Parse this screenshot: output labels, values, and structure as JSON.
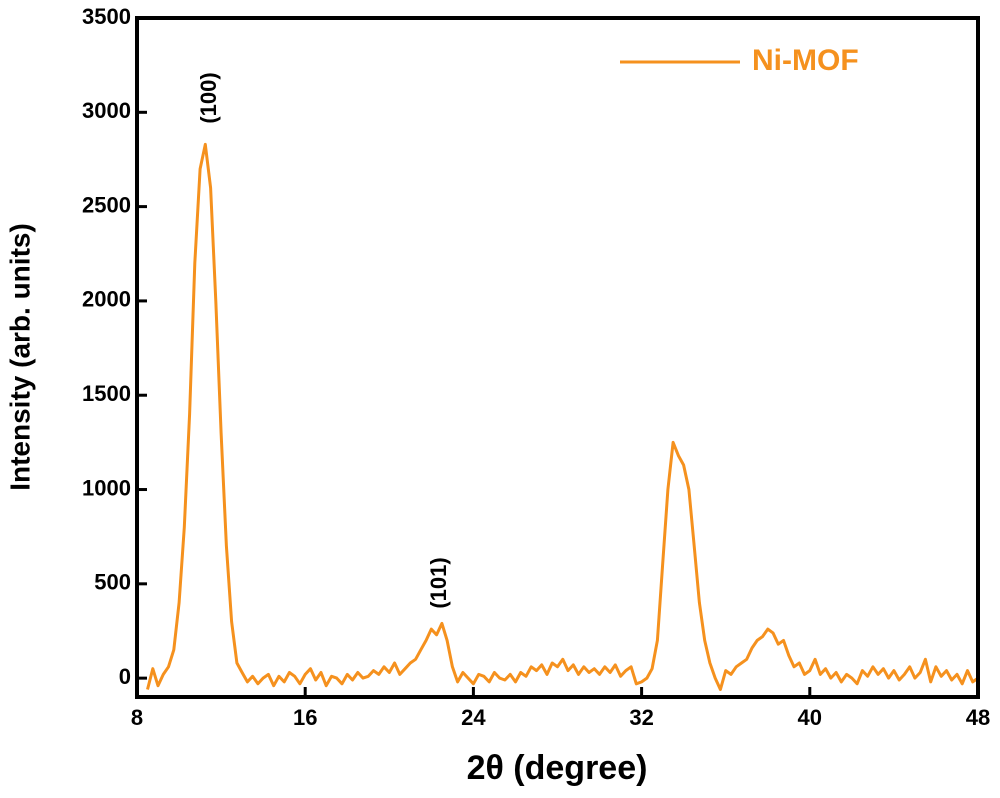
{
  "chart_data": {
    "type": "line",
    "xlabel": "2θ (degree)",
    "ylabel": "Intensity (arb. units)",
    "xlim": [
      8,
      48
    ],
    "ylim": [
      -100,
      3500
    ],
    "xticks": [
      8,
      16,
      24,
      32,
      40,
      48
    ],
    "yticks": [
      0,
      500,
      1000,
      1500,
      2000,
      2500,
      3000,
      3500
    ],
    "legend": "upper right",
    "annotations": [
      "(100)",
      "(101)"
    ],
    "x": [
      8.5,
      8.75,
      9,
      9.25,
      9.5,
      9.75,
      10,
      10.25,
      10.5,
      10.75,
      11,
      11.25,
      11.5,
      11.75,
      12,
      12.25,
      12.5,
      12.75,
      13,
      13.25,
      13.5,
      13.75,
      14,
      14.25,
      14.5,
      14.75,
      15,
      15.25,
      15.5,
      15.75,
      16,
      16.25,
      16.5,
      16.75,
      17,
      17.25,
      17.5,
      17.75,
      18,
      18.25,
      18.5,
      18.75,
      19,
      19.25,
      19.5,
      19.75,
      20,
      20.25,
      20.5,
      20.75,
      21,
      21.25,
      21.5,
      21.75,
      22,
      22.25,
      22.5,
      22.75,
      23,
      23.25,
      23.5,
      23.75,
      24,
      24.25,
      24.5,
      24.75,
      25,
      25.25,
      25.5,
      25.75,
      26,
      26.25,
      26.5,
      26.75,
      27,
      27.25,
      27.5,
      27.75,
      28,
      28.25,
      28.5,
      28.75,
      29,
      29.25,
      29.5,
      29.75,
      30,
      30.25,
      30.5,
      30.75,
      31,
      31.25,
      31.5,
      31.75,
      32,
      32.25,
      32.5,
      32.75,
      33,
      33.25,
      33.5,
      33.75,
      34,
      34.25,
      34.5,
      34.75,
      35,
      35.25,
      35.5,
      35.75,
      36,
      36.25,
      36.5,
      36.75,
      37,
      37.25,
      37.5,
      37.75,
      38,
      38.25,
      38.5,
      38.75,
      39,
      39.25,
      39.5,
      39.75,
      40,
      40.25,
      40.5,
      40.75,
      41,
      41.25,
      41.5,
      41.75,
      42,
      42.25,
      42.5,
      42.75,
      43,
      43.25,
      43.5,
      43.75,
      44,
      44.25,
      44.5,
      44.75,
      45,
      45.25,
      45.5,
      45.75,
      46,
      46.25,
      46.5,
      46.75,
      47,
      47.25,
      47.5,
      47.75,
      48
    ],
    "series": [
      {
        "name": "Ni-MOF",
        "color": "#f5911e",
        "values": [
          -60,
          50,
          -40,
          20,
          60,
          150,
          400,
          800,
          1400,
          2200,
          2700,
          2830,
          2600,
          2000,
          1300,
          700,
          300,
          80,
          30,
          -20,
          10,
          -30,
          0,
          20,
          -40,
          10,
          -20,
          30,
          10,
          -30,
          20,
          50,
          -10,
          30,
          -40,
          10,
          0,
          -30,
          20,
          -10,
          30,
          0,
          10,
          40,
          20,
          60,
          30,
          80,
          20,
          50,
          80,
          100,
          150,
          200,
          260,
          230,
          290,
          200,
          60,
          -20,
          30,
          0,
          -30,
          20,
          10,
          -20,
          30,
          0,
          -10,
          20,
          -20,
          30,
          10,
          60,
          40,
          70,
          20,
          80,
          60,
          100,
          40,
          70,
          20,
          60,
          30,
          50,
          20,
          60,
          30,
          70,
          10,
          40,
          60,
          -30,
          -20,
          0,
          50,
          200,
          600,
          1000,
          1250,
          1180,
          1130,
          1000,
          700,
          400,
          200,
          80,
          0,
          -60,
          40,
          20,
          60,
          80,
          100,
          160,
          200,
          220,
          260,
          240,
          180,
          200,
          120,
          60,
          80,
          20,
          40,
          100,
          20,
          50,
          0,
          30,
          -20,
          20,
          0,
          -30,
          40,
          10,
          60,
          20,
          50,
          0,
          40,
          -10,
          20,
          60,
          0,
          30,
          100,
          -20,
          60,
          10,
          40,
          -10,
          20,
          -30,
          40,
          -20,
          0
        ]
      }
    ]
  }
}
